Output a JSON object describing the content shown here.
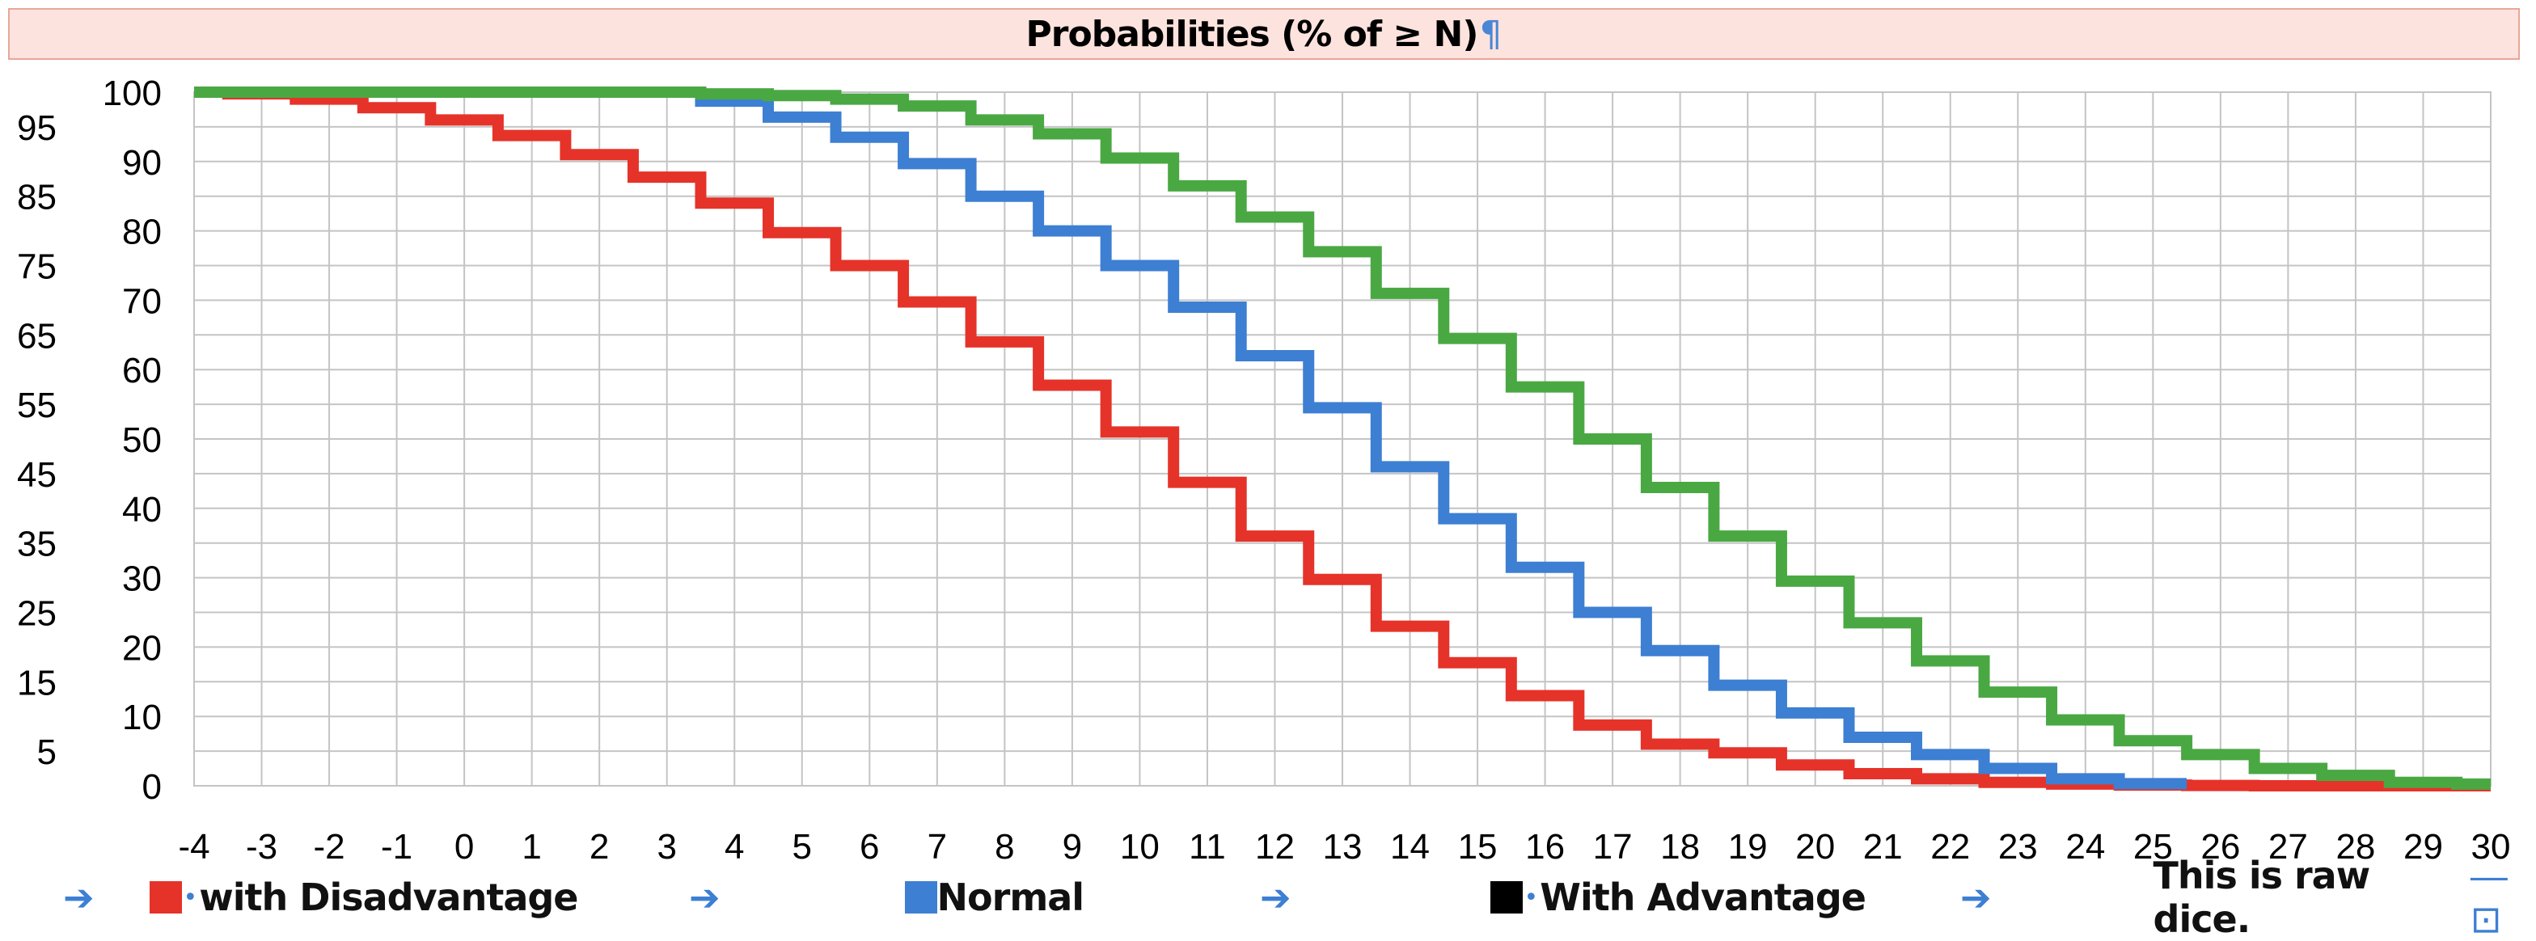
{
  "title": "Probabilities (% of ≥ N)",
  "pilcrow": "¶",
  "legend": {
    "items": [
      {
        "label": "with Disadvantage",
        "color": "#e5332a"
      },
      {
        "label": "Normal",
        "color": "#3d7fd3"
      },
      {
        "label": "With Advantage",
        "color": "#000000"
      }
    ],
    "note": "This is raw dice.",
    "arrow": "➔"
  },
  "chart_data": {
    "type": "line",
    "step": true,
    "x": [
      -4,
      -3,
      -2,
      -1,
      0,
      1,
      2,
      3,
      4,
      5,
      6,
      7,
      8,
      9,
      10,
      11,
      12,
      13,
      14,
      15,
      16,
      17,
      18,
      19,
      20,
      21,
      22,
      23,
      24,
      25,
      26,
      27,
      28,
      29,
      30
    ],
    "xlim": [
      -4,
      30
    ],
    "ylim": [
      0,
      100
    ],
    "yticks_right": [
      0,
      10,
      20,
      30,
      40,
      50,
      60,
      70,
      80,
      90,
      100
    ],
    "yticks_left": [
      5,
      15,
      25,
      35,
      45,
      55,
      65,
      75,
      85,
      95
    ],
    "grid": true,
    "series": [
      {
        "name": "with Disadvantage",
        "color": "#e5332a",
        "values": [
          100,
          99.75,
          99,
          97.75,
          96,
          93.75,
          91,
          87.75,
          84,
          79.75,
          75,
          69.75,
          64,
          57.75,
          51,
          43.75,
          36,
          29.75,
          23,
          17.75,
          13,
          8.75,
          6,
          4.75,
          3,
          1.75,
          1,
          0.5,
          0.25,
          0.1,
          0.05,
          0,
          0,
          0,
          0
        ]
      },
      {
        "name": "",
        "color": "#3d7fd3",
        "values": [
          null,
          null,
          null,
          null,
          null,
          null,
          null,
          100,
          98.7,
          96.4,
          93.5,
          89.7,
          85,
          80,
          75,
          69,
          62,
          54.5,
          46,
          38.5,
          31.5,
          25,
          19.5,
          14.5,
          10.5,
          7,
          4.5,
          2.5,
          1,
          0.3,
          null,
          null,
          null,
          null,
          null
        ]
      },
      {
        "name": "",
        "color": "#4aa843",
        "values": [
          100,
          100,
          100,
          100,
          100,
          100,
          100,
          100,
          99.75,
          99.5,
          99,
          98,
          96,
          94,
          90.5,
          86.5,
          82,
          77,
          71,
          64.5,
          57.5,
          50,
          43,
          36,
          29.5,
          23.5,
          18,
          13.5,
          9.5,
          6.5,
          4.5,
          2.5,
          1.5,
          0.5,
          0.25
        ]
      }
    ]
  }
}
